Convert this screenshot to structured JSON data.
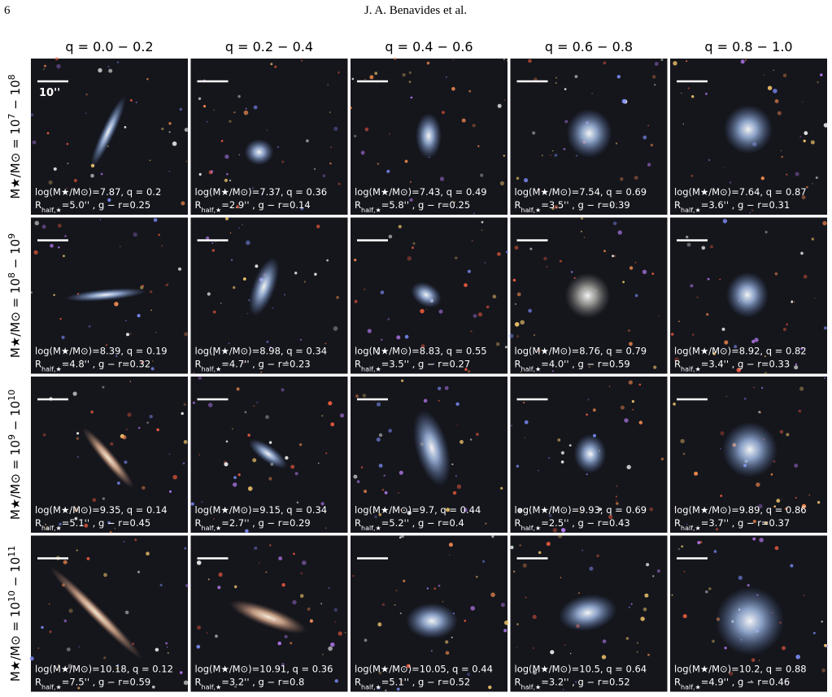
{
  "header": {
    "page_number": "6",
    "authors": "J. A. Benavides et al."
  },
  "columns": [
    "q = 0.0 − 0.2",
    "q = 0.2 − 0.4",
    "q = 0.4 − 0.6",
    "q = 0.6 − 0.8",
    "q = 0.8 − 1.0"
  ],
  "rows": [
    {
      "label": {
        "text": "M★/M⊙ = 10",
        "exp1": "7",
        "sep": " − 10",
        "exp2": "8"
      },
      "panels": [
        {
          "line1": "log(M★/M⊙)=7.87, q = 0.2",
          "line2": {
            "r": "R",
            "sub": "half,★",
            "rest": "=5.0'' , g − r=0.25"
          }
        },
        {
          "line1": "log(M★/M⊙)=7.37, q = 0.36",
          "line2": {
            "r": "R",
            "sub": "half,★",
            "rest": "=2.9'' , g − r=0.14"
          }
        },
        {
          "line1": "log(M★/M⊙)=7.43, q = 0.49",
          "line2": {
            "r": "R",
            "sub": "half,★",
            "rest": "=5.8'' , g − r=0.25"
          }
        },
        {
          "line1": "log(M★/M⊙)=7.54, q = 0.69",
          "line2": {
            "r": "R",
            "sub": "half,★",
            "rest": "=3.5'' , g − r=0.39"
          }
        },
        {
          "line1": "log(M★/M⊙)=7.64, q = 0.87",
          "line2": {
            "r": "R",
            "sub": "half,★",
            "rest": "=3.6'' , g − r=0.31"
          }
        }
      ]
    },
    {
      "label": {
        "text": "M★/M⊙ = 10",
        "exp1": "8",
        "sep": " − 10",
        "exp2": "9"
      },
      "panels": [
        {
          "line1": "log(M★/M⊙)=8.39, q = 0.19",
          "line2": {
            "r": "R",
            "sub": "half,★",
            "rest": "=4.8'' , g − r=0.32"
          }
        },
        {
          "line1": "log(M★/M⊙)=8.98, q = 0.34",
          "line2": {
            "r": "R",
            "sub": "half,★",
            "rest": "=4.7'' , g − r=0.23"
          }
        },
        {
          "line1": "log(M★/M⊙)=8.83, q = 0.55",
          "line2": {
            "r": "R",
            "sub": "half,★",
            "rest": "=3.5'' , g − r=0.27"
          }
        },
        {
          "line1": "log(M★/M⊙)=8.76, q = 0.79",
          "line2": {
            "r": "R",
            "sub": "half,★",
            "rest": "=4.0'' , g − r=0.59"
          }
        },
        {
          "line1": "log(M★/M⊙)=8.92, q = 0.82",
          "line2": {
            "r": "R",
            "sub": "half,★",
            "rest": "=3.4'' , g − r=0.33"
          }
        }
      ]
    },
    {
      "label": {
        "text": "M★/M⊙ = 10",
        "exp1": "9",
        "sep": " − 10",
        "exp2": "10"
      },
      "panels": [
        {
          "line1": "log(M★/M⊙)=9.35, q = 0.14",
          "line2": {
            "r": "R",
            "sub": "half,★",
            "rest": "=5.1'' , g − r=0.45"
          }
        },
        {
          "line1": "log(M★/M⊙)=9.15, q = 0.34",
          "line2": {
            "r": "R",
            "sub": "half,★",
            "rest": "=2.7'' , g − r=0.29"
          }
        },
        {
          "line1": "log(M★/M⊙)=9.7, q = 0.44",
          "line2": {
            "r": "R",
            "sub": "half,★",
            "rest": "=5.2'' , g − r=0.4"
          }
        },
        {
          "line1": "log(M★/M⊙)=9.93, q = 0.69",
          "line2": {
            "r": "R",
            "sub": "half,★",
            "rest": "=2.5'' , g − r=0.43"
          }
        },
        {
          "line1": "log(M★/M⊙)=9.89, q = 0.86",
          "line2": {
            "r": "R",
            "sub": "half,★",
            "rest": "=3.7'' , g − r=0.37"
          }
        }
      ]
    },
    {
      "label": {
        "text": "M★/M⊙ = 10",
        "exp1": "10",
        "sep": " − 10",
        "exp2": "11"
      },
      "panels": [
        {
          "line1": "log(M★/M⊙)=10.18, q = 0.12",
          "line2": {
            "r": "R",
            "sub": "half,★",
            "rest": "=7.5'' , g − r=0.59"
          }
        },
        {
          "line1": "log(M★/M⊙)=10.91, q = 0.36",
          "line2": {
            "r": "R",
            "sub": "half,★",
            "rest": "=3.2'' , g − r=0.8"
          }
        },
        {
          "line1": "log(M★/M⊙)=10.05, q = 0.44",
          "line2": {
            "r": "R",
            "sub": "half,★",
            "rest": "=5.1'' , g − r=0.52"
          }
        },
        {
          "line1": "log(M★/M⊙)=10.5, q = 0.64",
          "line2": {
            "r": "R",
            "sub": "half,★",
            "rest": "=3.2'' , g − r=0.52"
          }
        },
        {
          "line1": "log(M★/M⊙)=10.2, q = 0.88",
          "line2": {
            "r": "R",
            "sub": "half,★",
            "rest": "=4.9'' , g − r=0.46"
          }
        }
      ]
    }
  ],
  "scale_label": "10''"
}
